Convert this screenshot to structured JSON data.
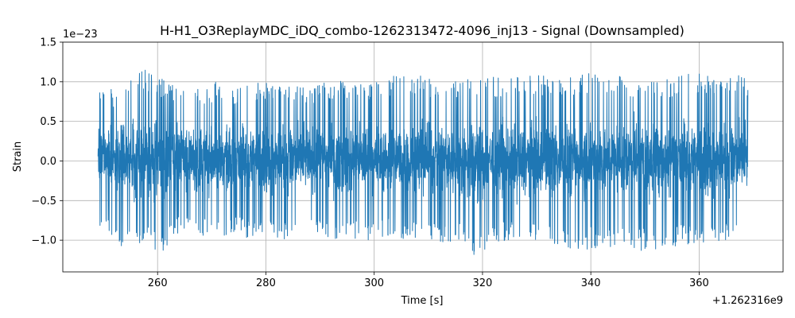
{
  "chart_data": {
    "type": "line",
    "title": "H-H1_O3ReplayMDC_iDQ_combo-1262313472-4096_inj13 - Signal (Downsampled)",
    "xlabel": "Time [s]",
    "ylabel": "Strain",
    "x_offset_text": "+1.262316e9",
    "y_scale_text": "1e−23",
    "xlim": [
      242.5,
      375.5
    ],
    "ylim": [
      -1.4,
      1.5
    ],
    "xticks": [
      260,
      280,
      300,
      320,
      340,
      360
    ],
    "yticks": [
      -1.0,
      -0.5,
      0.0,
      0.5,
      1.0,
      1.5
    ],
    "ytick_labels": [
      "−1.0",
      "−0.5",
      "0.0",
      "0.5",
      "1.0",
      "1.5"
    ],
    "grid": true,
    "series": [
      {
        "color": "#1f77b4",
        "x_range": [
          249.0,
          369.0
        ],
        "envelope": {
          "x": [
            249,
            251,
            253,
            255,
            257,
            259,
            261,
            263,
            265,
            268,
            271,
            274,
            277,
            280,
            283,
            286,
            289,
            292,
            295,
            298,
            301,
            304,
            307,
            310,
            313,
            316,
            319,
            322,
            325,
            328,
            331,
            334,
            337,
            340,
            343,
            346,
            349,
            352,
            355,
            358,
            361,
            364,
            367,
            369
          ],
          "upper": [
            0.85,
            0.97,
            0.78,
            1.1,
            1.2,
            1.1,
            1.05,
            0.95,
            1.1,
            0.95,
            1.0,
            0.9,
            0.98,
            1.0,
            0.98,
            0.95,
            0.97,
            1.0,
            1.02,
            1.05,
            0.98,
            1.1,
            1.12,
            1.05,
            1.03,
            1.05,
            1.1,
            1.06,
            1.04,
            1.13,
            1.1,
            1.02,
            1.07,
            1.12,
            1.14,
            1.1,
            1.03,
            1.1,
            1.05,
            1.12,
            1.1,
            1.05,
            1.1,
            1.07
          ],
          "lower": [
            -0.88,
            -0.95,
            -1.24,
            -1.0,
            -1.05,
            -1.1,
            -1.18,
            -0.95,
            -0.9,
            -0.95,
            -0.98,
            -0.92,
            -0.98,
            -0.95,
            -1.0,
            -0.96,
            -0.98,
            -1.02,
            -0.94,
            -1.05,
            -0.98,
            -0.95,
            -1.02,
            -1.0,
            -1.03,
            -1.05,
            -1.27,
            -1.02,
            -1.0,
            -1.0,
            -1.02,
            -1.05,
            -1.2,
            -1.1,
            -1.15,
            -1.02,
            -1.14,
            -1.12,
            -1.1,
            -1.05,
            -1.1,
            -1.02,
            -0.97,
            -0.9
          ]
        }
      }
    ]
  }
}
